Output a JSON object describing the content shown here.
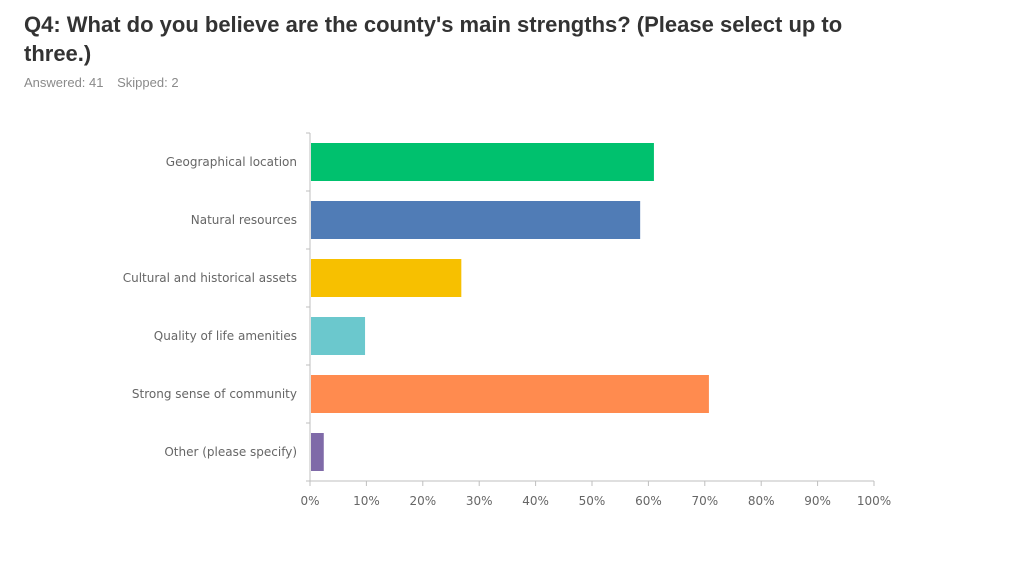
{
  "header": {
    "question": "Q4: What do you believe are the county's main strengths? (Please select up to three.)",
    "answered": "Answered: 41",
    "skipped": "Skipped: 2"
  },
  "chart_data": {
    "type": "bar",
    "orientation": "horizontal",
    "categories": [
      "Geographical location",
      "Natural resources",
      "Cultural and historical assets",
      "Quality of life amenities",
      "Strong sense of community",
      "Other (please specify)"
    ],
    "values": [
      60.98,
      58.54,
      26.83,
      9.76,
      70.73,
      2.44
    ],
    "colors": [
      "#00c16e",
      "#507cb6",
      "#f7c000",
      "#6bc8cd",
      "#ff8b4f",
      "#7f6aa8"
    ],
    "xlim": [
      0,
      100
    ],
    "xticks": [
      "0%",
      "10%",
      "20%",
      "30%",
      "40%",
      "50%",
      "60%",
      "70%",
      "80%",
      "90%",
      "100%"
    ],
    "grid": false,
    "legend": "none"
  }
}
